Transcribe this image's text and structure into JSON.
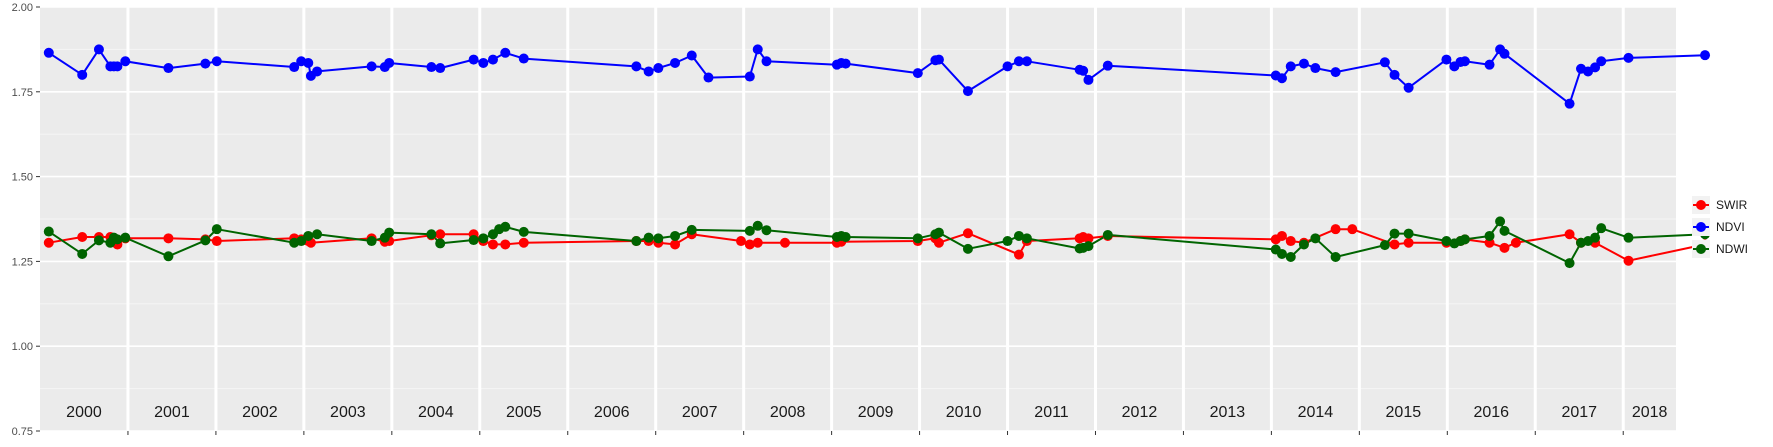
{
  "chart_data": {
    "type": "line",
    "title": "",
    "xlabel": "",
    "ylabel": "",
    "xlim": [
      2000.0,
      2018.6
    ],
    "ylim": [
      0.75,
      2.0
    ],
    "yticks": [
      "0.75",
      "1.00",
      "1.25",
      "1.50",
      "1.75",
      "2.00"
    ],
    "ytick_values": [
      0.75,
      1.0,
      1.25,
      1.5,
      1.75,
      2.0
    ],
    "year_labels": [
      "2000",
      "2001",
      "2002",
      "2003",
      "2004",
      "2005",
      "2006",
      "2007",
      "2008",
      "2009",
      "2010",
      "2011",
      "2012",
      "2013",
      "2014",
      "2015",
      "2016",
      "2017",
      "2018"
    ],
    "year_starts": [
      2000,
      2001,
      2002,
      2003,
      2004,
      2005,
      2006,
      2007,
      2008,
      2009,
      2010,
      2011,
      2012,
      2013,
      2014,
      2015,
      2016,
      2017,
      2018
    ],
    "panel_background": "#EBEBEB",
    "grid": true,
    "legend_position": "right",
    "series": [
      {
        "name": "SWIR",
        "color": "#FF0000",
        "points": [
          [
            2000.1,
            1.305
          ],
          [
            2000.48,
            1.322
          ],
          [
            2000.67,
            1.322
          ],
          [
            2000.8,
            1.322
          ],
          [
            2000.84,
            1.31
          ],
          [
            2000.88,
            1.3
          ],
          [
            2000.97,
            1.318
          ],
          [
            2001.46,
            1.318
          ],
          [
            2001.88,
            1.315
          ],
          [
            2002.01,
            1.31
          ],
          [
            2002.89,
            1.318
          ],
          [
            2002.97,
            1.315
          ],
          [
            2003.05,
            1.31
          ],
          [
            2003.08,
            1.305
          ],
          [
            2003.77,
            1.318
          ],
          [
            2003.92,
            1.308
          ],
          [
            2003.97,
            1.31
          ],
          [
            2004.45,
            1.327
          ],
          [
            2004.55,
            1.33
          ],
          [
            2004.93,
            1.33
          ],
          [
            2005.04,
            1.31
          ],
          [
            2005.15,
            1.3
          ],
          [
            2005.29,
            1.3
          ],
          [
            2005.5,
            1.305
          ],
          [
            2006.78,
            1.31
          ],
          [
            2006.92,
            1.31
          ],
          [
            2007.03,
            1.305
          ],
          [
            2007.22,
            1.3
          ],
          [
            2007.41,
            1.33
          ],
          [
            2007.97,
            1.31
          ],
          [
            2008.07,
            1.3
          ],
          [
            2008.16,
            1.305
          ],
          [
            2008.47,
            1.305
          ],
          [
            2009.06,
            1.305
          ],
          [
            2009.11,
            1.308
          ],
          [
            2009.98,
            1.31
          ],
          [
            2010.18,
            1.318
          ],
          [
            2010.22,
            1.305
          ],
          [
            2010.55,
            1.333
          ],
          [
            2011.13,
            1.27
          ],
          [
            2011.22,
            1.31
          ],
          [
            2011.82,
            1.318
          ],
          [
            2011.86,
            1.322
          ],
          [
            2011.92,
            1.318
          ],
          [
            2012.14,
            1.325
          ],
          [
            2014.05,
            1.315
          ],
          [
            2014.12,
            1.325
          ],
          [
            2014.22,
            1.31
          ],
          [
            2014.37,
            1.305
          ],
          [
            2014.73,
            1.345
          ],
          [
            2014.92,
            1.345
          ],
          [
            2015.4,
            1.3
          ],
          [
            2015.56,
            1.305
          ],
          [
            2015.99,
            1.305
          ],
          [
            2016.15,
            1.31
          ],
          [
            2016.2,
            1.315
          ],
          [
            2016.48,
            1.305
          ],
          [
            2016.65,
            1.29
          ],
          [
            2016.78,
            1.305
          ],
          [
            2017.39,
            1.33
          ],
          [
            2017.52,
            1.305
          ],
          [
            2017.68,
            1.305
          ],
          [
            2018.06,
            1.252
          ],
          [
            2018.93,
            1.3
          ]
        ]
      },
      {
        "name": "NDVI",
        "color": "#0000FF",
        "points": [
          [
            2000.1,
            1.865
          ],
          [
            2000.48,
            1.8
          ],
          [
            2000.67,
            1.875
          ],
          [
            2000.8,
            1.825
          ],
          [
            2000.84,
            1.825
          ],
          [
            2000.88,
            1.825
          ],
          [
            2000.97,
            1.84
          ],
          [
            2001.46,
            1.82
          ],
          [
            2001.88,
            1.833
          ],
          [
            2002.01,
            1.84
          ],
          [
            2002.89,
            1.823
          ],
          [
            2002.97,
            1.84
          ],
          [
            2003.05,
            1.835
          ],
          [
            2003.08,
            1.797
          ],
          [
            2003.15,
            1.81
          ],
          [
            2003.77,
            1.825
          ],
          [
            2003.92,
            1.823
          ],
          [
            2003.97,
            1.835
          ],
          [
            2004.45,
            1.823
          ],
          [
            2004.55,
            1.82
          ],
          [
            2004.93,
            1.845
          ],
          [
            2005.04,
            1.835
          ],
          [
            2005.15,
            1.845
          ],
          [
            2005.29,
            1.865
          ],
          [
            2005.5,
            1.848
          ],
          [
            2006.78,
            1.825
          ],
          [
            2006.92,
            1.81
          ],
          [
            2007.03,
            1.82
          ],
          [
            2007.22,
            1.835
          ],
          [
            2007.41,
            1.857
          ],
          [
            2007.6,
            1.792
          ],
          [
            2008.07,
            1.795
          ],
          [
            2008.16,
            1.875
          ],
          [
            2008.26,
            1.84
          ],
          [
            2009.06,
            1.83
          ],
          [
            2009.11,
            1.835
          ],
          [
            2009.16,
            1.833
          ],
          [
            2009.98,
            1.805
          ],
          [
            2010.18,
            1.843
          ],
          [
            2010.22,
            1.845
          ],
          [
            2010.55,
            1.752
          ],
          [
            2011.0,
            1.825
          ],
          [
            2011.13,
            1.84
          ],
          [
            2011.22,
            1.84
          ],
          [
            2011.82,
            1.815
          ],
          [
            2011.86,
            1.812
          ],
          [
            2011.92,
            1.785
          ],
          [
            2012.14,
            1.827
          ],
          [
            2014.05,
            1.798
          ],
          [
            2014.12,
            1.79
          ],
          [
            2014.22,
            1.825
          ],
          [
            2014.37,
            1.833
          ],
          [
            2014.5,
            1.82
          ],
          [
            2014.73,
            1.808
          ],
          [
            2015.29,
            1.837
          ],
          [
            2015.4,
            1.8
          ],
          [
            2015.56,
            1.762
          ],
          [
            2015.99,
            1.845
          ],
          [
            2016.08,
            1.825
          ],
          [
            2016.15,
            1.838
          ],
          [
            2016.2,
            1.84
          ],
          [
            2016.48,
            1.83
          ],
          [
            2016.6,
            1.875
          ],
          [
            2016.65,
            1.862
          ],
          [
            2017.39,
            1.715
          ],
          [
            2017.52,
            1.818
          ],
          [
            2017.6,
            1.81
          ],
          [
            2017.68,
            1.822
          ],
          [
            2017.75,
            1.84
          ],
          [
            2018.06,
            1.85
          ],
          [
            2018.93,
            1.858
          ]
        ]
      },
      {
        "name": "NDWI",
        "color": "#006400",
        "points": [
          [
            2000.1,
            1.338
          ],
          [
            2000.48,
            1.272
          ],
          [
            2000.67,
            1.312
          ],
          [
            2000.8,
            1.305
          ],
          [
            2000.84,
            1.32
          ],
          [
            2000.88,
            1.315
          ],
          [
            2000.97,
            1.32
          ],
          [
            2001.46,
            1.265
          ],
          [
            2001.88,
            1.312
          ],
          [
            2002.01,
            1.345
          ],
          [
            2002.89,
            1.305
          ],
          [
            2002.97,
            1.31
          ],
          [
            2003.05,
            1.325
          ],
          [
            2003.15,
            1.33
          ],
          [
            2003.77,
            1.31
          ],
          [
            2003.92,
            1.32
          ],
          [
            2003.97,
            1.335
          ],
          [
            2004.45,
            1.33
          ],
          [
            2004.55,
            1.303
          ],
          [
            2004.93,
            1.313
          ],
          [
            2005.04,
            1.318
          ],
          [
            2005.15,
            1.33
          ],
          [
            2005.22,
            1.345
          ],
          [
            2005.29,
            1.352
          ],
          [
            2005.5,
            1.337
          ],
          [
            2006.78,
            1.31
          ],
          [
            2006.92,
            1.32
          ],
          [
            2007.03,
            1.318
          ],
          [
            2007.22,
            1.325
          ],
          [
            2007.41,
            1.343
          ],
          [
            2008.07,
            1.34
          ],
          [
            2008.16,
            1.355
          ],
          [
            2008.26,
            1.342
          ],
          [
            2009.06,
            1.322
          ],
          [
            2009.11,
            1.325
          ],
          [
            2009.16,
            1.322
          ],
          [
            2009.98,
            1.318
          ],
          [
            2010.18,
            1.33
          ],
          [
            2010.22,
            1.335
          ],
          [
            2010.55,
            1.287
          ],
          [
            2011.0,
            1.31
          ],
          [
            2011.13,
            1.325
          ],
          [
            2011.22,
            1.318
          ],
          [
            2011.82,
            1.288
          ],
          [
            2011.86,
            1.29
          ],
          [
            2011.92,
            1.295
          ],
          [
            2012.14,
            1.328
          ],
          [
            2014.05,
            1.285
          ],
          [
            2014.12,
            1.272
          ],
          [
            2014.22,
            1.263
          ],
          [
            2014.37,
            1.3
          ],
          [
            2014.5,
            1.318
          ],
          [
            2014.73,
            1.263
          ],
          [
            2015.29,
            1.298
          ],
          [
            2015.4,
            1.332
          ],
          [
            2015.56,
            1.332
          ],
          [
            2015.99,
            1.31
          ],
          [
            2016.08,
            1.303
          ],
          [
            2016.15,
            1.31
          ],
          [
            2016.2,
            1.315
          ],
          [
            2016.48,
            1.325
          ],
          [
            2016.6,
            1.368
          ],
          [
            2016.65,
            1.34
          ],
          [
            2017.39,
            1.245
          ],
          [
            2017.52,
            1.305
          ],
          [
            2017.6,
            1.31
          ],
          [
            2017.68,
            1.32
          ],
          [
            2017.75,
            1.348
          ],
          [
            2018.06,
            1.32
          ],
          [
            2018.93,
            1.33
          ]
        ]
      }
    ],
    "legend": [
      "SWIR",
      "NDVI",
      "NDWI"
    ]
  }
}
